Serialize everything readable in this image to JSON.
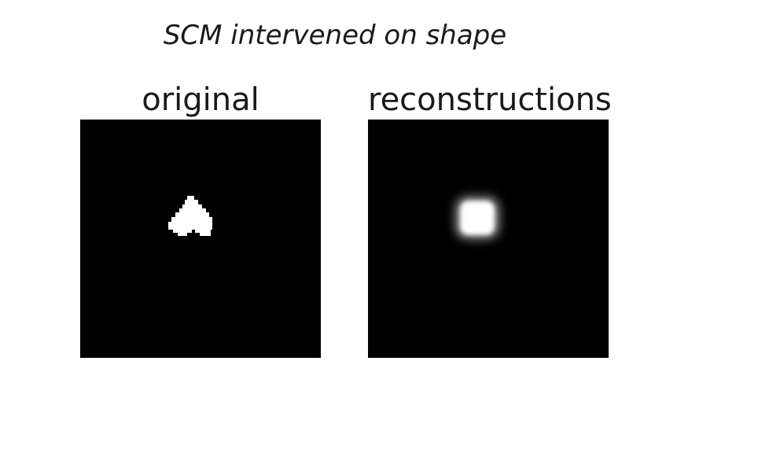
{
  "figure": {
    "suptitle": "SCM intervened on shape",
    "panels": [
      {
        "title": "original",
        "image": "binary-heart-shape"
      },
      {
        "title": "reconstructions",
        "image": "blurred-square-blob"
      }
    ],
    "colors": {
      "background": "#ffffff",
      "image_background": "#000000",
      "foreground": "#ffffff"
    }
  }
}
